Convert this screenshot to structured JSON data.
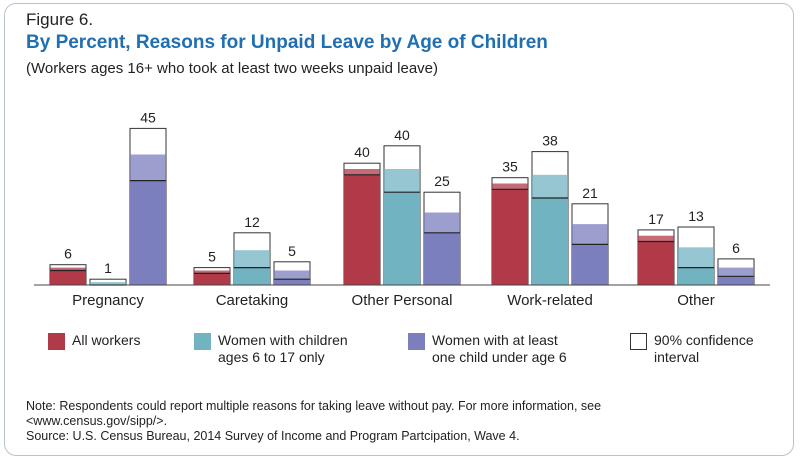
{
  "figure_label": "Figure 6.",
  "title": "By Percent, Reasons for Unpaid Leave by Age of Children",
  "subtitle": "(Workers ages 16+ who took at least two weeks unpaid leave)",
  "colors": {
    "all_workers": "#b03a48",
    "women_6_17": "#72b3c1",
    "women_under_6": "#7b7fbd",
    "ci_fill": "#ffffff",
    "ci_stroke": "#333333",
    "title": "#1f6fb2"
  },
  "chart_data": {
    "type": "bar",
    "categories": [
      "Pregnancy",
      "Caretaking",
      "Other Personal",
      "Work-related",
      "Other"
    ],
    "series": [
      {
        "name": "All workers",
        "values": [
          6,
          5,
          40,
          35,
          17
        ],
        "ci_upper": [
          7,
          6,
          42,
          37,
          19
        ]
      },
      {
        "name": "Women with children ages 6 to 17 only",
        "values": [
          1,
          12,
          40,
          38,
          13
        ],
        "ci_upper": [
          2,
          18,
          48,
          46,
          20
        ]
      },
      {
        "name": "Women with at least one child under age 6",
        "values": [
          45,
          5,
          25,
          21,
          6
        ],
        "ci_upper": [
          54,
          8,
          32,
          28,
          9
        ]
      }
    ],
    "ylim": [
      0,
      60
    ],
    "value_labels": [
      [
        "6",
        "5",
        "40",
        "35",
        "17"
      ],
      [
        "1",
        "12",
        "40",
        "38",
        "13"
      ],
      [
        "45",
        "5",
        "25",
        "21",
        "6"
      ]
    ],
    "legend": [
      {
        "key": "all_workers",
        "lines": [
          "All workers"
        ]
      },
      {
        "key": "women_6_17",
        "lines": [
          "Women with children",
          "ages 6 to 17 only"
        ]
      },
      {
        "key": "women_under_6",
        "lines": [
          "Women with at least",
          "one child under age 6"
        ]
      },
      {
        "key": "ci",
        "lines": [
          "90% confidence",
          "interval"
        ]
      }
    ],
    "legend_placement": "bottom",
    "grid": false
  },
  "note_lines": [
    "Note: Respondents could report multiple reasons for taking leave without pay. For more information, see",
    "<www.census.gov/sipp/>.",
    "Source: U.S. Census Bureau, 2014 Survey of Income and Program Partcipation, Wave 4."
  ]
}
